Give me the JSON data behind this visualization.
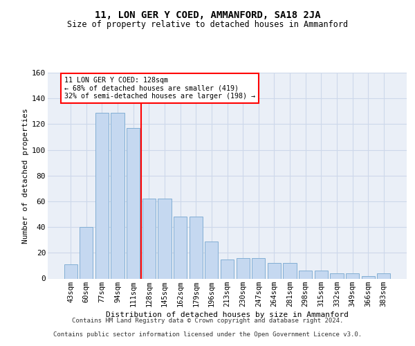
{
  "title": "11, LON GER Y COED, AMMANFORD, SA18 2JA",
  "subtitle": "Size of property relative to detached houses in Ammanford",
  "xlabel": "Distribution of detached houses by size in Ammanford",
  "ylabel": "Number of detached properties",
  "categories": [
    "43sqm",
    "60sqm",
    "77sqm",
    "94sqm",
    "111sqm",
    "128sqm",
    "145sqm",
    "162sqm",
    "179sqm",
    "196sqm",
    "213sqm",
    "230sqm",
    "247sqm",
    "264sqm",
    "281sqm",
    "298sqm",
    "315sqm",
    "332sqm",
    "349sqm",
    "366sqm",
    "383sqm"
  ],
  "bar_heights": [
    11,
    40,
    129,
    129,
    117,
    62,
    62,
    48,
    48,
    29,
    15,
    16,
    16,
    12,
    12,
    6,
    6,
    4,
    4,
    2,
    4
  ],
  "bar_color": "#c5d8f0",
  "bar_edge_color": "#82aed4",
  "grid_color": "#cdd8ea",
  "bg_color": "#eaeff7",
  "annotation_line1": "11 LON GER Y COED: 128sqm",
  "annotation_line2": "← 68% of detached houses are smaller (419)",
  "annotation_line3": "32% of semi-detached houses are larger (198) →",
  "footer_line1": "Contains HM Land Registry data © Crown copyright and database right 2024.",
  "footer_line2": "Contains public sector information licensed under the Open Government Licence v3.0.",
  "ylim": [
    0,
    160
  ],
  "yticks": [
    0,
    20,
    40,
    60,
    80,
    100,
    120,
    140,
    160
  ]
}
